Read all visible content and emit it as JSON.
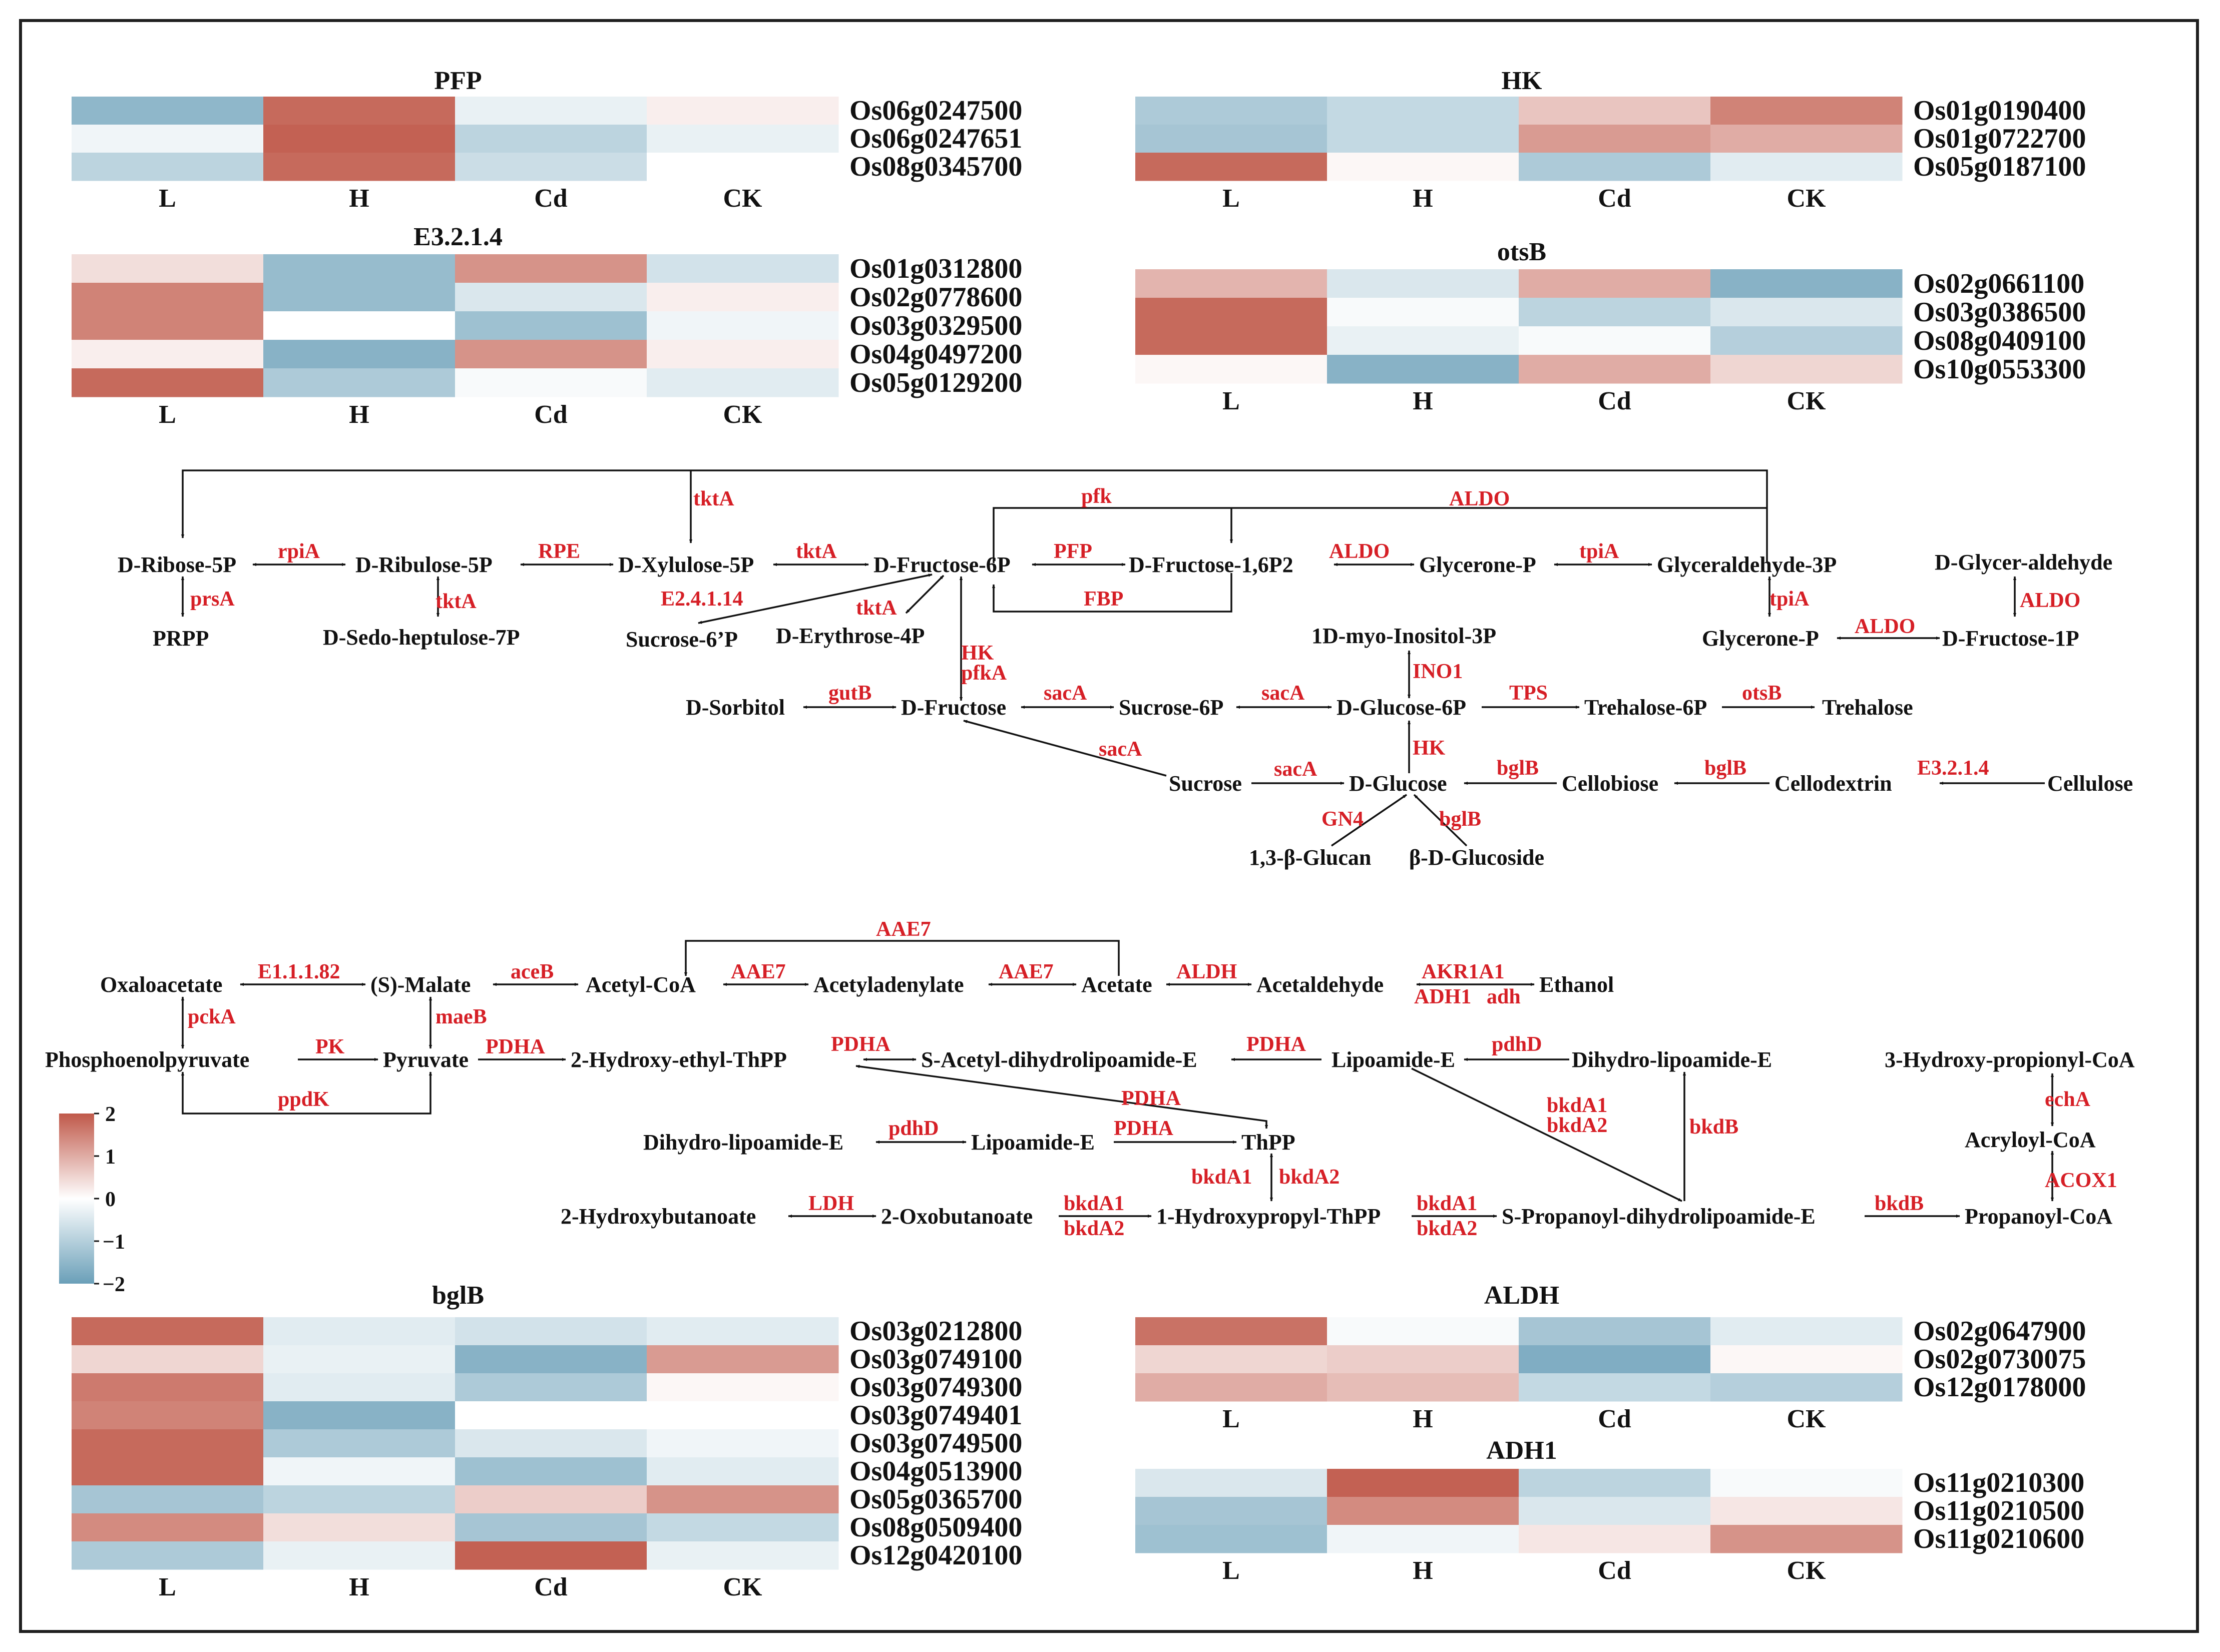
{
  "colors": {
    "high": "#c0594a",
    "mid": "#ffffff",
    "low": "#6a9fb8",
    "enzyme": "#d61f26",
    "line": "#111111"
  },
  "conditions": [
    "L",
    "H",
    "Cd",
    "CK"
  ],
  "colorbar": {
    "ticks": [
      "2",
      "1",
      "0",
      "−1",
      "−2"
    ],
    "max": 2,
    "min": -2
  },
  "heatmaps": {
    "pfp": {
      "title": "PFP",
      "rows": [
        {
          "gene": "Os06g0247500",
          "values": [
            -1.5,
            1.8,
            -0.3,
            0.2
          ]
        },
        {
          "gene": "Os06g0247651",
          "values": [
            -0.2,
            1.9,
            -0.9,
            -0.3
          ]
        },
        {
          "gene": "Os08g0345700",
          "values": [
            -0.9,
            1.8,
            -0.7,
            0.0
          ]
        }
      ]
    },
    "hk": {
      "title": "HK",
      "rows": [
        {
          "gene": "Os01g0190400",
          "values": [
            -1.1,
            -0.8,
            0.7,
            1.5
          ]
        },
        {
          "gene": "Os01g0722700",
          "values": [
            -1.2,
            -0.8,
            1.2,
            1.0
          ]
        },
        {
          "gene": "Os05g0187100",
          "values": [
            1.8,
            0.1,
            -1.1,
            -0.4
          ]
        }
      ]
    },
    "e3214": {
      "title": "E3.2.1.4",
      "rows": [
        {
          "gene": "Os01g0312800",
          "values": [
            0.4,
            -1.4,
            1.3,
            -0.6
          ]
        },
        {
          "gene": "Os02g0778600",
          "values": [
            1.5,
            -1.4,
            -0.5,
            0.2
          ]
        },
        {
          "gene": "Os03g0329500",
          "values": [
            1.5,
            0.0,
            -1.3,
            -0.2
          ]
        },
        {
          "gene": "Os04g0497200",
          "values": [
            0.2,
            -1.6,
            1.3,
            0.2
          ]
        },
        {
          "gene": "Os05g0129200",
          "values": [
            1.8,
            -1.1,
            -0.1,
            -0.4
          ]
        }
      ]
    },
    "otsb": {
      "title": "otsB",
      "rows": [
        {
          "gene": "Os02g0661100",
          "values": [
            0.9,
            -0.5,
            1.0,
            -1.6
          ]
        },
        {
          "gene": "Os03g0386500",
          "values": [
            1.8,
            -0.1,
            -0.9,
            -0.5
          ]
        },
        {
          "gene": "Os08g0409100",
          "values": [
            1.8,
            -0.3,
            -0.1,
            -1.0
          ]
        },
        {
          "gene": "Os10g0553300",
          "values": [
            0.1,
            -1.6,
            1.0,
            0.5
          ]
        }
      ]
    },
    "bglb": {
      "title": "bglB",
      "rows": [
        {
          "gene": "Os03g0212800",
          "values": [
            1.8,
            -0.4,
            -0.6,
            -0.4
          ]
        },
        {
          "gene": "Os03g0749100",
          "values": [
            0.5,
            -0.3,
            -1.6,
            1.2
          ]
        },
        {
          "gene": "Os03g0749300",
          "values": [
            1.6,
            -0.4,
            -1.1,
            0.1
          ]
        },
        {
          "gene": "Os03g0749401",
          "values": [
            1.5,
            -1.6,
            0.0,
            0.0
          ]
        },
        {
          "gene": "Os03g0749500",
          "values": [
            1.8,
            -1.1,
            -0.5,
            -0.2
          ]
        },
        {
          "gene": "Os04g0513900",
          "values": [
            1.8,
            -0.2,
            -1.3,
            -0.4
          ]
        },
        {
          "gene": "Os05g0365700",
          "values": [
            -1.2,
            -0.9,
            0.6,
            1.3
          ]
        },
        {
          "gene": "Os08g0509400",
          "values": [
            1.4,
            0.4,
            -1.2,
            -0.8
          ]
        },
        {
          "gene": "Os12g0420100",
          "values": [
            -1.1,
            -0.3,
            1.9,
            -0.3
          ]
        }
      ]
    },
    "aldh": {
      "title": "ALDH",
      "rows": [
        {
          "gene": "Os02g0647900",
          "values": [
            1.7,
            -0.1,
            -1.2,
            -0.4
          ]
        },
        {
          "gene": "Os02g0730075",
          "values": [
            0.5,
            0.6,
            -1.7,
            0.1
          ]
        },
        {
          "gene": "Os12g0178000",
          "values": [
            1.0,
            0.8,
            -0.8,
            -1.0
          ]
        }
      ]
    },
    "adh1": {
      "title": "ADH1",
      "rows": [
        {
          "gene": "Os11g0210300",
          "values": [
            -0.5,
            1.9,
            -0.9,
            -0.1
          ]
        },
        {
          "gene": "Os11g0210500",
          "values": [
            -1.2,
            1.4,
            -0.5,
            0.3
          ]
        },
        {
          "gene": "Os11g0210600",
          "values": [
            -1.3,
            -0.2,
            0.3,
            1.3
          ]
        }
      ]
    }
  },
  "metabolites": {
    "d_ribose_5p": "D-Ribose-5P",
    "d_ribulose_5p": "D-Ribulose-5P",
    "d_xylulose_5p": "D-Xylulose-5P",
    "d_fructose_6p": "D-Fructose-6P",
    "d_fructose_16p2": "D-Fructose-1,6P2",
    "glycerone_p_top": "Glycerone-P",
    "glyceraldehyde_3p": "Glyceraldehyde-3P",
    "d_glyceraldehyde": "D-Glycer-aldehyde",
    "prpp": "PRPP",
    "d_sedo_heptulose_7p": "D-Sedo-heptulose-7P",
    "sucrose_6p_prime": "Sucrose-6’P",
    "d_erythrose_4p": "D-Erythrose-4P",
    "myo_inositol_3p": "1D-myo-Inositol-3P",
    "glycerone_p_right": "Glycerone-P",
    "d_fructose_1p": "D-Fructose-1P",
    "d_sorbitol": "D-Sorbitol",
    "d_fructose": "D-Fructose",
    "sucrose_6p": "Sucrose-6P",
    "d_glucose_6p": "D-Glucose-6P",
    "trehalose_6p": "Trehalose-6P",
    "trehalose": "Trehalose",
    "sucrose": "Sucrose",
    "d_glucose": "D-Glucose",
    "cellobiose": "Cellobiose",
    "cellodextrin": "Cellodextrin",
    "cellulose": "Cellulose",
    "beta13_glucan": "1,3-β-Glucan",
    "beta_d_glucoside": "β-D-Glucoside",
    "oxaloacetate": "Oxaloacetate",
    "s_malate": "(S)-Malate",
    "acetyl_coa": "Acetyl-CoA",
    "acetyladenylate": "Acetyladenylate",
    "acetate": "Acetate",
    "acetaldehyde": "Acetaldehyde",
    "ethanol": "Ethanol",
    "pep": "Phosphoenolpyruvate",
    "pyruvate": "Pyruvate",
    "hydroxyethyl_thpp": "2-Hydroxy-ethyl-ThPP",
    "s_acetyl_dhl": "S-Acetyl-dihydrolipoamide-E",
    "lipoamide_e_top": "Lipoamide-E",
    "dihydro_lipoamide_e_right": "Dihydro-lipoamide-E",
    "hydroxypropionyl_coa": "3-Hydroxy-propionyl-CoA",
    "dihydro_lipoamide_e_left": "Dihydro-lipoamide-E",
    "lipoamide_e_mid": "Lipoamide-E",
    "thpp": "ThPP",
    "acryloyl_coa": "Acryloyl-CoA",
    "hydroxybutanoate": "2-Hydroxybutanoate",
    "oxobutanoate": "2-Oxobutanoate",
    "hydroxypropyl_thpp": "1-Hydroxypropyl-ThPP",
    "s_propanoyl_dhl": "S-Propanoyl-dihydrolipoamide-E",
    "propanoyl_coa": "Propanoyl-CoA"
  },
  "enzymes": {
    "tkta_top": "tktA",
    "pfk": "pfk",
    "aldo_top": "ALDO",
    "rpia": "rpiA",
    "rpe": "RPE",
    "tkta_1": "tktA",
    "pfp": "PFP",
    "aldo_1": "ALDO",
    "tpia_1": "tpiA",
    "prsa": "prsA",
    "tkta_2": "tktA",
    "e24114": "E2.4.1.14",
    "tkta_3": "tktA",
    "fbp": "FBP",
    "tpia_2": "tpiA",
    "aldo_2": "ALDO",
    "aldo_3": "ALDO",
    "hk_1": "HK",
    "pfka": "pfkA",
    "ino1": "INO1",
    "gutb": "gutB",
    "saca_1": "sacA",
    "saca_2": "sacA",
    "tps": "TPS",
    "otsb": "otsB",
    "hk_2": "HK",
    "saca_3": "sacA",
    "saca_4": "sacA",
    "bglb_1": "bglB",
    "bglb_2": "bglB",
    "e3214": "E3.2.1.4",
    "gn4": "GN4",
    "bglb_3": "bglB",
    "aae7_top": "AAE7",
    "e11182": "E1.1.1.82",
    "aceb": "aceB",
    "aae7_1": "AAE7",
    "aae7_2": "AAE7",
    "aldh": "ALDH",
    "akr1a1": "AKR1A1",
    "adh1": "ADH1",
    "adh": "adh",
    "pcka": "pckA",
    "maeb": "maeB",
    "pk": "PK",
    "pdha_1": "PDHA",
    "pdha_2": "PDHA",
    "pdha_3": "PDHA",
    "pdhd_1": "pdhD",
    "ppdk": "ppdK",
    "pdha_4": "PDHA",
    "bkda1_1": "bkdA1",
    "bkda2_1": "bkdA2",
    "bkdb_1": "bkdB",
    "echa": "echA",
    "pdhd_2": "pdhD",
    "pdha_5": "PDHA",
    "bkda1_2": "bkdA1",
    "bkda2_2": "bkdA2",
    "acox1": "ACOX1",
    "ldh": "LDH",
    "bkda1_3": "bkdA1",
    "bkda2_3": "bkdA2",
    "bkda1_4": "bkdA1",
    "bkda2_4": "bkdA2",
    "bkdb_2": "bkdB"
  }
}
